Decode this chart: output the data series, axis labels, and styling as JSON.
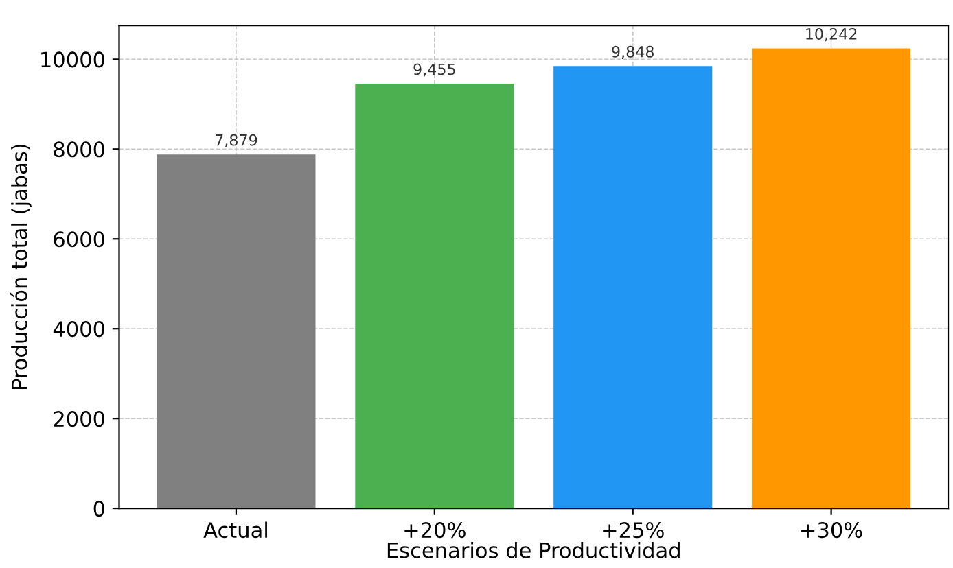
{
  "chart_data": {
    "type": "bar",
    "xlabel": "Escenarios de Productividad",
    "ylabel": "Producción total (jabas)",
    "categories": [
      "Actual",
      "+20%",
      "+25%",
      "+30%"
    ],
    "values": [
      7879,
      9455,
      9848,
      10242
    ],
    "colors": [
      "#808080",
      "#4caf50",
      "#2196f3",
      "#ff9800"
    ],
    "value_labels": [
      "7,879",
      "9,455",
      "9,848",
      "10,242"
    ],
    "ylim": [
      0,
      10750
    ],
    "yticks": [
      0,
      2000,
      4000,
      6000,
      8000,
      10000
    ],
    "grid": true
  }
}
